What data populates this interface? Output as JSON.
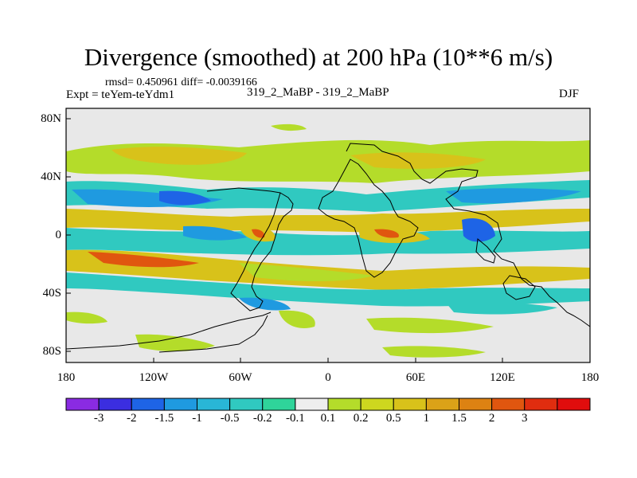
{
  "title": "Divergence (smoothed) at 200 hPa (10**6 m/s)",
  "stats_line": "rmsd= 0.450961 diff= -0.0039166",
  "expt_label": "Expt = teYem-teYdm1",
  "experiment_names": "319_2_MaBP - 319_2_MaBP",
  "season": "DJF",
  "y_ticks": [
    "80N",
    "40N",
    "0",
    "40S",
    "80S"
  ],
  "x_ticks": [
    "180",
    "120W",
    "60W",
    "0",
    "60E",
    "120E",
    "180"
  ],
  "colorbar": {
    "colors": [
      "#8a2be2",
      "#3b2ee0",
      "#1e64e6",
      "#1f9ae0",
      "#29b6d6",
      "#30c9c0",
      "#2fd49a",
      "#eeeeee",
      "#b4dc2a",
      "#cdd71f",
      "#d8c21a",
      "#dba218",
      "#dd8212",
      "#e0560f",
      "#e02d0f",
      "#e00d0d"
    ],
    "labels": [
      "-3",
      "-2",
      "-1.5",
      "-1",
      "-0.5",
      "-0.2",
      "-0.1",
      "0.1",
      "0.2",
      "0.5",
      "1",
      "1.5",
      "2",
      "3"
    ]
  },
  "colors": {
    "background": "#e8e8e8",
    "neg_strong": "#1e64e6",
    "neg_mid": "#1f9ae0",
    "neg_weak": "#30c9c0",
    "pos_weak": "#b4dc2a",
    "pos_mid": "#d8c21a",
    "pos_strong": "#e0560f"
  }
}
